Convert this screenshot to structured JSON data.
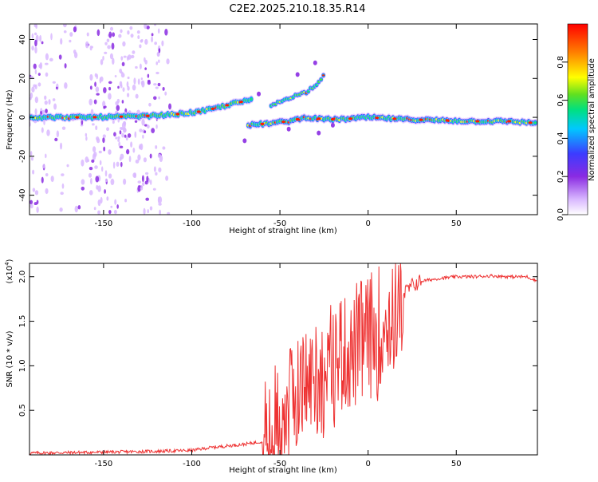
{
  "title": "C2E2.2025.210.18.35.R14",
  "chart_data": [
    {
      "id": "spectrogram",
      "type": "heatmap",
      "xlabel": "Height of straight line (km)",
      "ylabel": "Frequency (Hz)",
      "xlim": [
        -192,
        96
      ],
      "ylim": [
        -50,
        48
      ],
      "xticks": [
        -150,
        -100,
        -50,
        0,
        50
      ],
      "yticks": [
        -40,
        -20,
        0,
        20,
        40
      ],
      "xtick_labels": [
        "-150",
        "-100",
        "-50",
        "0",
        "50"
      ],
      "ytick_labels": [
        "-40",
        "-20",
        "0",
        "20",
        "40"
      ],
      "colorbar": {
        "label": "Normalized spectral amplitude",
        "range": [
          0,
          1
        ],
        "ticks": [
          0.0,
          0.2,
          0.4,
          0.6,
          0.8
        ],
        "tick_labels": [
          "0.0",
          "0.2",
          "0.4",
          "0.6",
          "0.8"
        ],
        "colors": [
          "#ffffff",
          "#d9b8ff",
          "#8a2be2",
          "#3c3cff",
          "#00c8ff",
          "#00e080",
          "#60e020",
          "#ffff00",
          "#ff8000",
          "#ff0000"
        ]
      },
      "main_trace": [
        {
          "x": -192,
          "y": 0
        },
        {
          "x": -160,
          "y": 0
        },
        {
          "x": -130,
          "y": 0.5
        },
        {
          "x": -110,
          "y": 1.5
        },
        {
          "x": -95,
          "y": 3
        },
        {
          "x": -85,
          "y": 5
        },
        {
          "x": -75,
          "y": 7.5
        },
        {
          "x": -65,
          "y": 9
        }
      ],
      "upper_branch": [
        {
          "x": -55,
          "y": 6
        },
        {
          "x": -45,
          "y": 10
        },
        {
          "x": -35,
          "y": 13
        },
        {
          "x": -28,
          "y": 18
        },
        {
          "x": -24,
          "y": 24
        }
      ],
      "lower_branch": [
        {
          "x": -68,
          "y": -4
        },
        {
          "x": -55,
          "y": -3
        },
        {
          "x": -45,
          "y": -2
        },
        {
          "x": -35,
          "y": 0
        },
        {
          "x": -25,
          "y": -1
        },
        {
          "x": -15,
          "y": -1
        },
        {
          "x": 0,
          "y": 0
        },
        {
          "x": 20,
          "y": -1
        },
        {
          "x": 40,
          "y": -1.5
        },
        {
          "x": 60,
          "y": -2
        },
        {
          "x": 80,
          "y": -2
        },
        {
          "x": 96,
          "y": -3
        }
      ]
    },
    {
      "id": "snr",
      "type": "line",
      "xlabel": "Height of straight line (km)",
      "ylabel": "SNR (10 * v/v)",
      "y_multiplier": "(x10",
      "y_multiplier_exp": "4",
      "y_multiplier_close": ")",
      "xlim": [
        -192,
        96
      ],
      "ylim": [
        0,
        2.15
      ],
      "xticks": [
        -150,
        -100,
        -50,
        0,
        50
      ],
      "yticks": [
        0.5,
        1.0,
        1.5,
        2.0
      ],
      "xtick_labels": [
        "-150",
        "-100",
        "-50",
        "0",
        "50"
      ],
      "ytick_labels": [
        "0.5",
        "1.0",
        "1.5",
        "2.0"
      ],
      "color": "#ee3333",
      "series": [
        {
          "x": [
            -192,
            -150,
            -120,
            -100,
            -90,
            -80,
            -70,
            -60,
            -55,
            -50,
            -45,
            -40,
            -35,
            -30,
            -25,
            -20,
            -15,
            -10,
            -5,
            0,
            5,
            10,
            15,
            20,
            25,
            30,
            40,
            50,
            60,
            70,
            80,
            90,
            96
          ],
          "y": [
            0.02,
            0.03,
            0.04,
            0.05,
            0.08,
            0.1,
            0.12,
            0.15,
            0.2,
            0.4,
            0.6,
            0.7,
            0.8,
            0.9,
            0.85,
            1.0,
            1.2,
            1.1,
            1.25,
            1.3,
            1.35,
            1.45,
            1.6,
            1.8,
            1.9,
            1.95,
            1.98,
            2.0,
            2.0,
            2.01,
            2.0,
            2.0,
            1.95
          ]
        }
      ]
    }
  ]
}
